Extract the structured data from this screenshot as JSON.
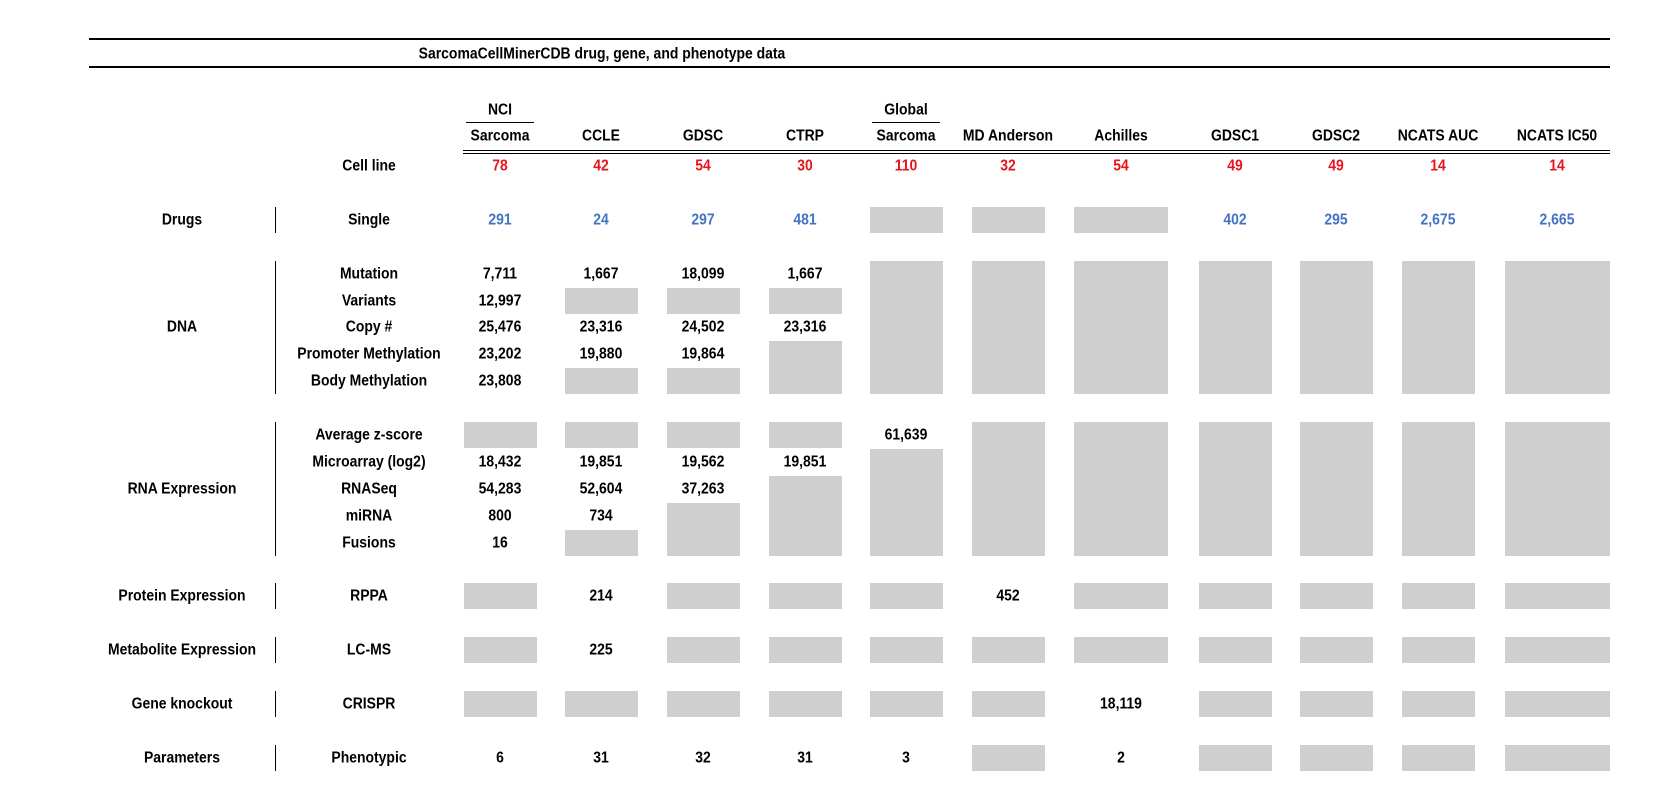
{
  "title": "SarcomaCellMinerCDB drug, gene, and phenotype data",
  "columns": [
    [
      "NCI",
      "Sarcoma"
    ],
    [
      "CCLE"
    ],
    [
      "GDSC"
    ],
    [
      "CTRP"
    ],
    [
      "Global",
      "Sarcoma"
    ],
    [
      "MD Anderson"
    ],
    [
      "Achilles"
    ],
    [
      "GDSC1"
    ],
    [
      "GDSC2"
    ],
    [
      "NCATS AUC"
    ],
    [
      "NCATS IC50"
    ]
  ],
  "cell_line": {
    "label": "Cell line",
    "counts": [
      "78",
      "42",
      "54",
      "30",
      "110",
      "32",
      "54",
      "49",
      "49",
      "14",
      "14"
    ]
  },
  "groups": [
    {
      "name": "Drugs",
      "rows": [
        {
          "label": "Single",
          "values": [
            "291",
            "24",
            "297",
            "481",
            null,
            null,
            null,
            "402",
            "295",
            "2,675",
            "2,665"
          ]
        }
      ]
    },
    {
      "name": "DNA",
      "rows": [
        {
          "label": "Mutation",
          "values": [
            "7,711",
            "1,667",
            "18,099",
            "1,667",
            null,
            null,
            null,
            null,
            null,
            null,
            null
          ]
        },
        {
          "label": "Variants",
          "values": [
            "12,997",
            null,
            null,
            null,
            null,
            null,
            null,
            null,
            null,
            null,
            null
          ]
        },
        {
          "label": "Copy #",
          "values": [
            "25,476",
            "23,316",
            "24,502",
            "23,316",
            null,
            null,
            null,
            null,
            null,
            null,
            null
          ]
        },
        {
          "label": "Promoter Methylation",
          "values": [
            "23,202",
            "19,880",
            "19,864",
            null,
            null,
            null,
            null,
            null,
            null,
            null,
            null
          ]
        },
        {
          "label": "Body Methylation",
          "values": [
            "23,808",
            null,
            null,
            null,
            null,
            null,
            null,
            null,
            null,
            null,
            null
          ]
        }
      ]
    },
    {
      "name": "RNA Expression",
      "rows": [
        {
          "label": "Average z-score",
          "values": [
            null,
            null,
            null,
            null,
            "61,639",
            null,
            null,
            null,
            null,
            null,
            null
          ]
        },
        {
          "label": "Microarray (log2)",
          "values": [
            "18,432",
            "19,851",
            "19,562",
            "19,851",
            null,
            null,
            null,
            null,
            null,
            null,
            null
          ]
        },
        {
          "label": "RNASeq",
          "values": [
            "54,283",
            "52,604",
            "37,263",
            null,
            null,
            null,
            null,
            null,
            null,
            null,
            null
          ]
        },
        {
          "label": "miRNA",
          "values": [
            "800",
            "734",
            null,
            null,
            null,
            null,
            null,
            null,
            null,
            null,
            null
          ]
        },
        {
          "label": "Fusions",
          "values": [
            "16",
            null,
            null,
            null,
            null,
            null,
            null,
            null,
            null,
            null,
            null
          ]
        }
      ]
    },
    {
      "name": "Protein Expression",
      "rows": [
        {
          "label": "RPPA",
          "values": [
            null,
            "214",
            null,
            null,
            null,
            "452",
            null,
            null,
            null,
            null,
            null
          ]
        }
      ]
    },
    {
      "name": "Metabolite Expression",
      "rows": [
        {
          "label": "LC-MS",
          "values": [
            null,
            "225",
            null,
            null,
            null,
            null,
            null,
            null,
            null,
            null,
            null
          ]
        }
      ]
    },
    {
      "name": "Gene knockout",
      "rows": [
        {
          "label": "CRISPR",
          "values": [
            null,
            null,
            null,
            null,
            null,
            null,
            "18,119",
            null,
            null,
            null,
            null
          ]
        }
      ]
    },
    {
      "name": "Parameters",
      "rows": [
        {
          "label": "Phenotypic",
          "values": [
            "6",
            "31",
            "32",
            "31",
            "3",
            null,
            "2",
            null,
            null,
            null,
            null
          ]
        }
      ]
    }
  ]
}
